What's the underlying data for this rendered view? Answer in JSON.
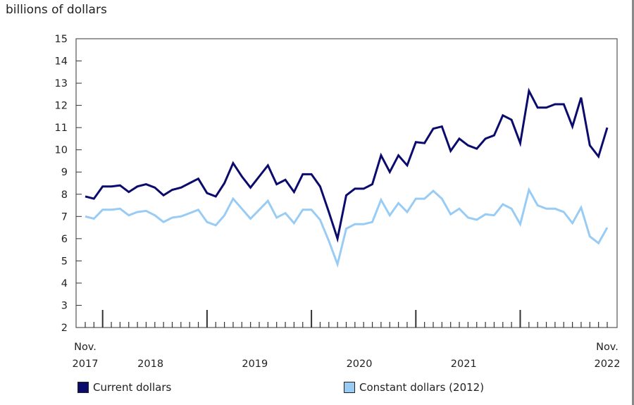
{
  "chart_data": {
    "type": "line",
    "title": "",
    "ylabel": "billions of dollars",
    "xlabel": "",
    "ylim": [
      2,
      15
    ],
    "yticks": [
      "2",
      "3",
      "4",
      "5",
      "6",
      "7",
      "8",
      "9",
      "10",
      "11",
      "12",
      "13",
      "14",
      "15"
    ],
    "x_start": "Nov. 2017",
    "x_end": "Nov. 2022",
    "xtick_labels": [
      {
        "line1": "Nov.",
        "line2": "2017",
        "index": 0
      },
      {
        "line1": "",
        "line2": "2018",
        "index": 7.5
      },
      {
        "line1": "",
        "line2": "2019",
        "index": 19.5
      },
      {
        "line1": "",
        "line2": "2020",
        "index": 31.5
      },
      {
        "line1": "",
        "line2": "2021",
        "index": 43.5
      },
      {
        "line1": "Nov.",
        "line2": "2022",
        "index": 60
      }
    ],
    "year_start_indices": [
      2,
      14,
      26,
      38,
      50
    ],
    "grid": false,
    "legend_position": "bottom",
    "series": [
      {
        "name": "Current dollars",
        "color": "#0b0b6e",
        "values": [
          7.9,
          7.8,
          8.35,
          8.35,
          8.4,
          8.1,
          8.35,
          8.45,
          8.3,
          7.95,
          8.2,
          8.3,
          8.5,
          8.7,
          8.05,
          7.9,
          8.5,
          9.4,
          8.8,
          8.3,
          8.8,
          9.3,
          8.45,
          8.65,
          8.1,
          8.9,
          8.9,
          8.35,
          7.2,
          6.0,
          7.95,
          8.25,
          8.25,
          8.45,
          9.75,
          9.0,
          9.75,
          9.3,
          10.35,
          10.3,
          10.95,
          11.05,
          9.95,
          10.5,
          10.2,
          10.05,
          10.5,
          10.65,
          11.55,
          11.35,
          10.3,
          12.65,
          11.9,
          11.9,
          12.05,
          12.05,
          11.05,
          12.35,
          10.2,
          9.7,
          11.0
        ]
      },
      {
        "name": "Constant dollars (2012)",
        "color": "#99ccf5",
        "values": [
          7.0,
          6.9,
          7.3,
          7.3,
          7.35,
          7.05,
          7.2,
          7.25,
          7.05,
          6.75,
          6.95,
          7.0,
          7.15,
          7.3,
          6.75,
          6.6,
          7.05,
          7.8,
          7.35,
          6.9,
          7.3,
          7.7,
          6.95,
          7.15,
          6.7,
          7.3,
          7.3,
          6.85,
          5.9,
          4.85,
          6.45,
          6.65,
          6.65,
          6.75,
          7.75,
          7.05,
          7.6,
          7.2,
          7.8,
          7.8,
          8.15,
          7.8,
          7.1,
          7.35,
          6.95,
          6.85,
          7.1,
          7.05,
          7.55,
          7.35,
          6.65,
          8.2,
          7.5,
          7.35,
          7.35,
          7.2,
          6.7,
          7.4,
          6.1,
          5.8,
          6.5
        ]
      }
    ]
  }
}
